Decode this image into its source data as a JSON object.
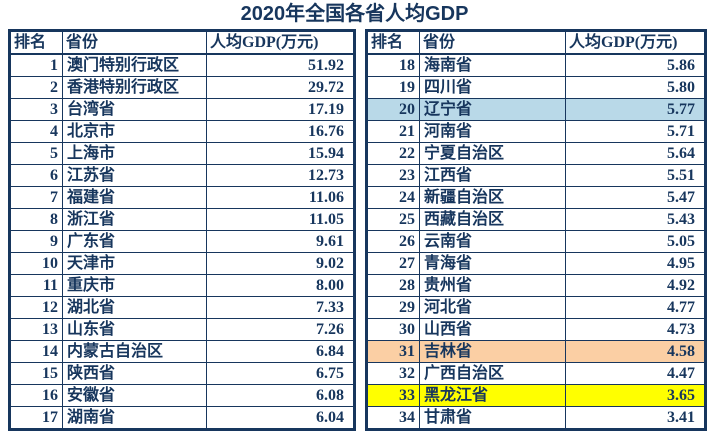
{
  "title": "2020年全国各省人均GDP",
  "columns": {
    "rank": "排名",
    "province": "省份",
    "gdp": "人均GDP(万元)"
  },
  "colors": {
    "text": "#17365d",
    "border": "#17365d",
    "highlight_blue": "#b9d9e8",
    "highlight_peach": "#fbcfa4",
    "highlight_yellow": "#ffff00"
  },
  "left_table": {
    "rows": [
      {
        "rank": "1",
        "province": "澳门特别行政区",
        "gdp": "51.92"
      },
      {
        "rank": "2",
        "province": "香港特别行政区",
        "gdp": "29.72"
      },
      {
        "rank": "3",
        "province": "台湾省",
        "gdp": "17.19"
      },
      {
        "rank": "4",
        "province": "北京市",
        "gdp": "16.76"
      },
      {
        "rank": "5",
        "province": "上海市",
        "gdp": "15.94"
      },
      {
        "rank": "6",
        "province": "江苏省",
        "gdp": "12.73"
      },
      {
        "rank": "7",
        "province": "福建省",
        "gdp": "11.06"
      },
      {
        "rank": "8",
        "province": "浙江省",
        "gdp": "11.05"
      },
      {
        "rank": "9",
        "province": "广东省",
        "gdp": "9.61"
      },
      {
        "rank": "10",
        "province": "天津市",
        "gdp": "9.02"
      },
      {
        "rank": "11",
        "province": "重庆市",
        "gdp": "8.00"
      },
      {
        "rank": "12",
        "province": "湖北省",
        "gdp": "7.33"
      },
      {
        "rank": "13",
        "province": "山东省",
        "gdp": "7.26"
      },
      {
        "rank": "14",
        "province": "内蒙古自治区",
        "gdp": "6.84"
      },
      {
        "rank": "15",
        "province": "陕西省",
        "gdp": "6.75"
      },
      {
        "rank": "16",
        "province": "安徽省",
        "gdp": "6.08"
      },
      {
        "rank": "17",
        "province": "湖南省",
        "gdp": "6.04"
      }
    ]
  },
  "right_table": {
    "rows": [
      {
        "rank": "18",
        "province": "海南省",
        "gdp": "5.86"
      },
      {
        "rank": "19",
        "province": "四川省",
        "gdp": "5.80"
      },
      {
        "rank": "20",
        "province": "辽宁省",
        "gdp": "5.77",
        "highlight": "blue"
      },
      {
        "rank": "21",
        "province": "河南省",
        "gdp": "5.71"
      },
      {
        "rank": "22",
        "province": "宁夏自治区",
        "gdp": "5.64"
      },
      {
        "rank": "23",
        "province": "江西省",
        "gdp": "5.51"
      },
      {
        "rank": "24",
        "province": "新疆自治区",
        "gdp": "5.47"
      },
      {
        "rank": "25",
        "province": "西藏自治区",
        "gdp": "5.43"
      },
      {
        "rank": "26",
        "province": "云南省",
        "gdp": "5.05"
      },
      {
        "rank": "27",
        "province": "青海省",
        "gdp": "4.95"
      },
      {
        "rank": "28",
        "province": "贵州省",
        "gdp": "4.92"
      },
      {
        "rank": "29",
        "province": "河北省",
        "gdp": "4.77"
      },
      {
        "rank": "30",
        "province": "山西省",
        "gdp": "4.73"
      },
      {
        "rank": "31",
        "province": "吉林省",
        "gdp": "4.58",
        "highlight": "peach"
      },
      {
        "rank": "32",
        "province": "广西自治区",
        "gdp": "4.47"
      },
      {
        "rank": "33",
        "province": "黑龙江省",
        "gdp": "3.65",
        "highlight": "yellow"
      },
      {
        "rank": "34",
        "province": "甘肃省",
        "gdp": "3.41"
      }
    ]
  }
}
